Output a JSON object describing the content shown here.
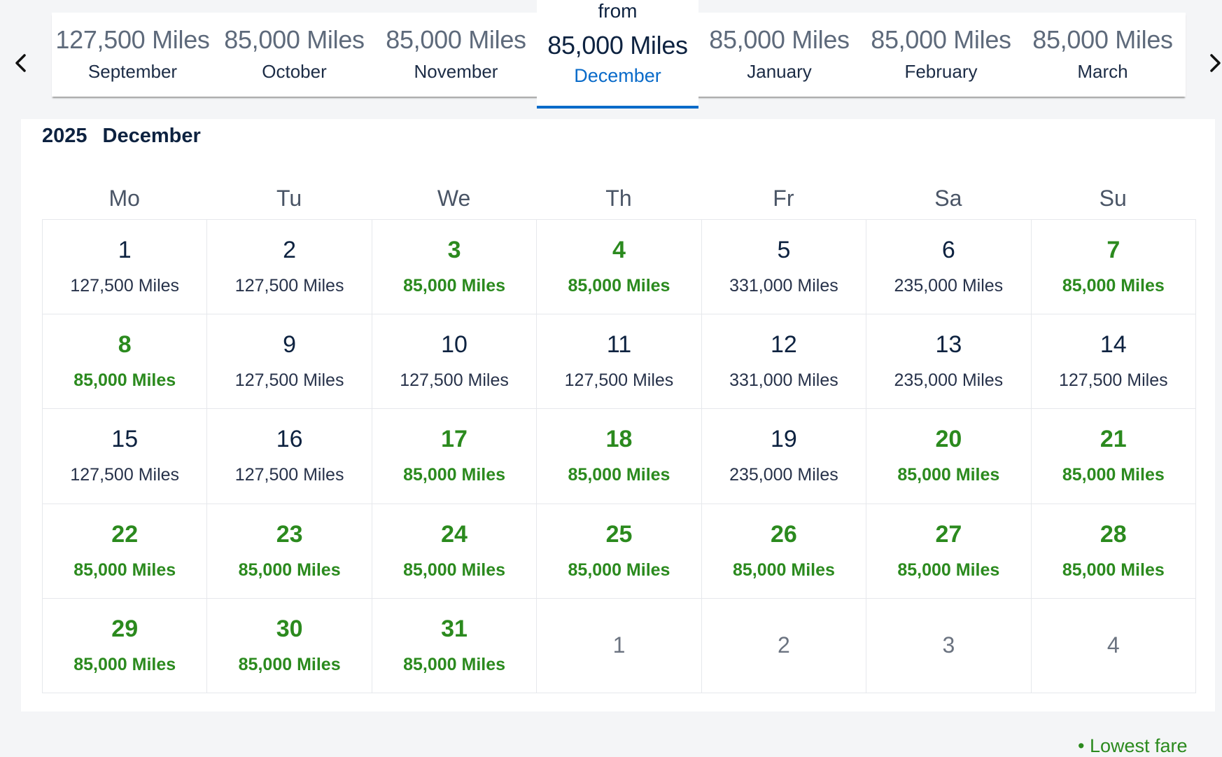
{
  "nav": {
    "prev_icon": "chevron-left-icon",
    "next_icon": "chevron-right-icon"
  },
  "months": [
    {
      "miles": "127,500 Miles",
      "name": "September"
    },
    {
      "miles": "85,000 Miles",
      "name": "October"
    },
    {
      "miles": "85,000 Miles",
      "name": "November"
    },
    {
      "from": "from",
      "miles": "85,000 Miles",
      "name": "December",
      "active": true
    },
    {
      "miles": "85,000 Miles",
      "name": "January"
    },
    {
      "miles": "85,000 Miles",
      "name": "February"
    },
    {
      "miles": "85,000 Miles",
      "name": "March"
    }
  ],
  "calendar": {
    "year": "2025",
    "month": "December",
    "weekdays": [
      "Mo",
      "Tu",
      "We",
      "Th",
      "Fr",
      "Sa",
      "Su"
    ],
    "days": [
      {
        "d": "1",
        "p": "127,500 Miles",
        "low": false
      },
      {
        "d": "2",
        "p": "127,500 Miles",
        "low": false
      },
      {
        "d": "3",
        "p": "85,000 Miles",
        "low": true
      },
      {
        "d": "4",
        "p": "85,000 Miles",
        "low": true
      },
      {
        "d": "5",
        "p": "331,000 Miles",
        "low": false
      },
      {
        "d": "6",
        "p": "235,000 Miles",
        "low": false
      },
      {
        "d": "7",
        "p": "85,000 Miles",
        "low": true
      },
      {
        "d": "8",
        "p": "85,000 Miles",
        "low": true
      },
      {
        "d": "9",
        "p": "127,500 Miles",
        "low": false
      },
      {
        "d": "10",
        "p": "127,500 Miles",
        "low": false
      },
      {
        "d": "11",
        "p": "127,500 Miles",
        "low": false
      },
      {
        "d": "12",
        "p": "331,000 Miles",
        "low": false
      },
      {
        "d": "13",
        "p": "235,000 Miles",
        "low": false
      },
      {
        "d": "14",
        "p": "127,500 Miles",
        "low": false
      },
      {
        "d": "15",
        "p": "127,500 Miles",
        "low": false
      },
      {
        "d": "16",
        "p": "127,500 Miles",
        "low": false
      },
      {
        "d": "17",
        "p": "85,000 Miles",
        "low": true
      },
      {
        "d": "18",
        "p": "85,000 Miles",
        "low": true
      },
      {
        "d": "19",
        "p": "235,000 Miles",
        "low": false
      },
      {
        "d": "20",
        "p": "85,000 Miles",
        "low": true
      },
      {
        "d": "21",
        "p": "85,000 Miles",
        "low": true
      },
      {
        "d": "22",
        "p": "85,000 Miles",
        "low": true
      },
      {
        "d": "23",
        "p": "85,000 Miles",
        "low": true
      },
      {
        "d": "24",
        "p": "85,000 Miles",
        "low": true
      },
      {
        "d": "25",
        "p": "85,000 Miles",
        "low": true
      },
      {
        "d": "26",
        "p": "85,000 Miles",
        "low": true
      },
      {
        "d": "27",
        "p": "85,000 Miles",
        "low": true
      },
      {
        "d": "28",
        "p": "85,000 Miles",
        "low": true
      },
      {
        "d": "29",
        "p": "85,000 Miles",
        "low": true
      },
      {
        "d": "30",
        "p": "85,000 Miles",
        "low": true
      },
      {
        "d": "31",
        "p": "85,000 Miles",
        "low": true
      }
    ],
    "trailing": [
      "1",
      "2",
      "3",
      "4"
    ]
  },
  "legend": {
    "text": "• Lowest fare"
  },
  "colors": {
    "accent": "#0a6bc9",
    "lowest": "#2b8a1e",
    "text": "#0d2240"
  }
}
